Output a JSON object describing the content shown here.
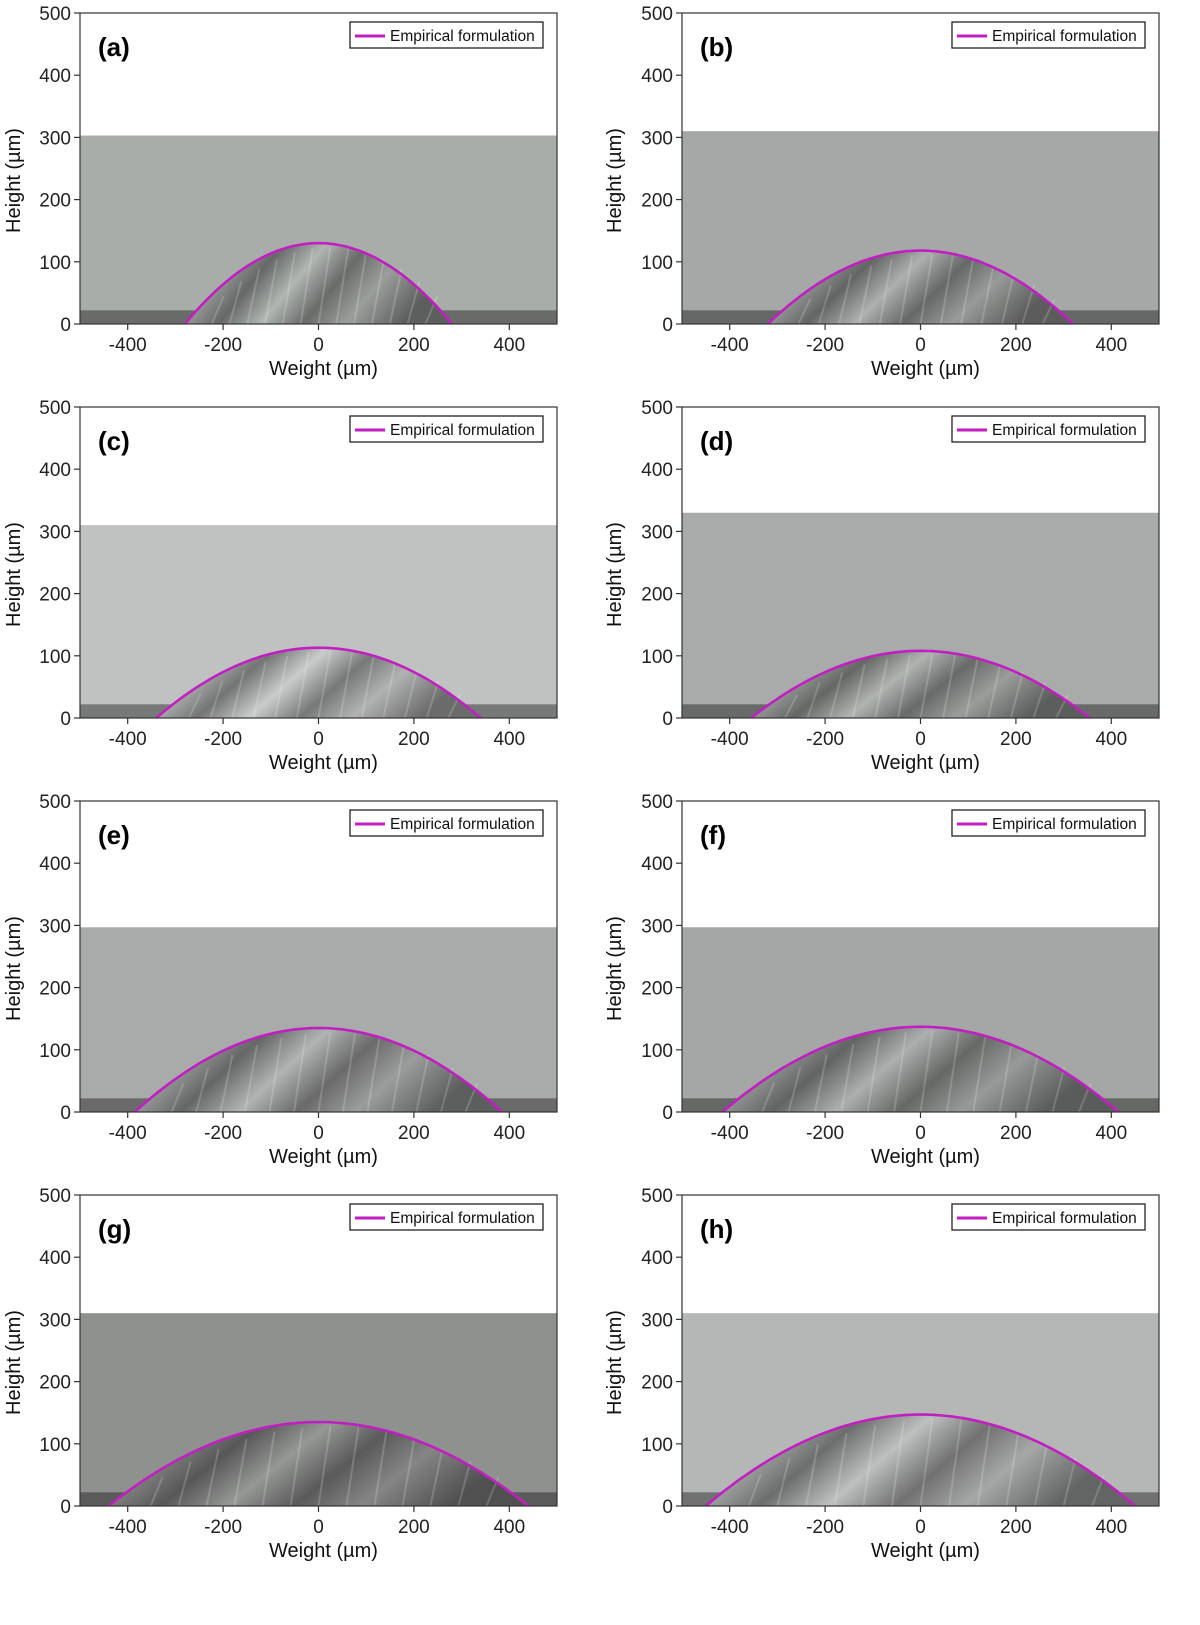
{
  "chart_data": [
    {
      "type": "line",
      "panel_label": "(a)",
      "xlabel": "Weight (µm)",
      "ylabel": "Height (µm)",
      "xlim": [
        -500,
        500
      ],
      "ylim": [
        0,
        500
      ],
      "xticks": [
        -400,
        -200,
        0,
        200,
        400
      ],
      "yticks": [
        0,
        100,
        200,
        300,
        400,
        500
      ],
      "legend": "Empirical formulation",
      "legend_position": "top-right",
      "image_top": 303,
      "image_tone": "#a9adaa",
      "series": [
        {
          "name": "Empirical formulation",
          "color": "#c21fc2",
          "peak_height": 130,
          "half_width": 280
        }
      ]
    },
    {
      "type": "line",
      "panel_label": "(b)",
      "xlabel": "Weight (µm)",
      "ylabel": "Height (µm)",
      "xlim": [
        -500,
        500
      ],
      "ylim": [
        0,
        500
      ],
      "xticks": [
        -400,
        -200,
        0,
        200,
        400
      ],
      "yticks": [
        0,
        100,
        200,
        300,
        400,
        500
      ],
      "legend": "Empirical formulation",
      "legend_position": "top-right",
      "image_top": 310,
      "image_tone": "#a5a8a6",
      "series": [
        {
          "name": "Empirical formulation",
          "color": "#c21fc2",
          "peak_height": 118,
          "half_width": 320
        }
      ]
    },
    {
      "type": "line",
      "panel_label": "(c)",
      "xlabel": "Weight (µm)",
      "ylabel": "Height (µm)",
      "xlim": [
        -500,
        500
      ],
      "ylim": [
        0,
        500
      ],
      "xticks": [
        -400,
        -200,
        0,
        200,
        400
      ],
      "yticks": [
        0,
        100,
        200,
        300,
        400,
        500
      ],
      "legend": "Empirical formulation",
      "legend_position": "top-right",
      "image_top": 310,
      "image_tone": "#c0c2c1",
      "series": [
        {
          "name": "Empirical formulation",
          "color": "#c21fc2",
          "peak_height": 113,
          "half_width": 340
        }
      ]
    },
    {
      "type": "line",
      "panel_label": "(d)",
      "xlabel": "Weight (µm)",
      "ylabel": "Height (µm)",
      "xlim": [
        -500,
        500
      ],
      "ylim": [
        0,
        500
      ],
      "xticks": [
        -400,
        -200,
        0,
        200,
        400
      ],
      "yticks": [
        0,
        100,
        200,
        300,
        400,
        500
      ],
      "legend": "Empirical formulation",
      "legend_position": "top-right",
      "image_top": 330,
      "image_tone": "#a8aba9",
      "series": [
        {
          "name": "Empirical formulation",
          "color": "#c21fc2",
          "peak_height": 108,
          "half_width": 355
        }
      ]
    },
    {
      "type": "line",
      "panel_label": "(e)",
      "xlabel": "Weight (µm)",
      "ylabel": "Height (µm)",
      "xlim": [
        -500,
        500
      ],
      "ylim": [
        0,
        500
      ],
      "xticks": [
        -400,
        -200,
        0,
        200,
        400
      ],
      "yticks": [
        0,
        100,
        200,
        300,
        400,
        500
      ],
      "legend": "Empirical formulation",
      "legend_position": "top-right",
      "image_top": 297,
      "image_tone": "#a9abaa",
      "series": [
        {
          "name": "Empirical formulation",
          "color": "#c21fc2",
          "peak_height": 135,
          "half_width": 385
        }
      ]
    },
    {
      "type": "line",
      "panel_label": "(f)",
      "xlabel": "Weight (µm)",
      "ylabel": "Height (µm)",
      "xlim": [
        -500,
        500
      ],
      "ylim": [
        0,
        500
      ],
      "xticks": [
        -400,
        -200,
        0,
        200,
        400
      ],
      "yticks": [
        0,
        100,
        200,
        300,
        400,
        500
      ],
      "legend": "Empirical formulation",
      "legend_position": "top-right",
      "image_top": 297,
      "image_tone": "#a4a7a5",
      "series": [
        {
          "name": "Empirical formulation",
          "color": "#c21fc2",
          "peak_height": 137,
          "half_width": 415
        }
      ]
    },
    {
      "type": "line",
      "panel_label": "(g)",
      "xlabel": "Weight (µm)",
      "ylabel": "Height (µm)",
      "xlim": [
        -500,
        500
      ],
      "ylim": [
        0,
        500
      ],
      "xticks": [
        -400,
        -200,
        0,
        200,
        400
      ],
      "yticks": [
        0,
        100,
        200,
        300,
        400,
        500
      ],
      "legend": "Empirical formulation",
      "legend_position": "top-right",
      "image_top": 310,
      "image_tone": "#8f918f",
      "series": [
        {
          "name": "Empirical formulation",
          "color": "#c21fc2",
          "peak_height": 135,
          "half_width": 440
        }
      ]
    },
    {
      "type": "line",
      "panel_label": "(h)",
      "xlabel": "Weight (µm)",
      "ylabel": "Height (µm)",
      "xlim": [
        -500,
        500
      ],
      "ylim": [
        0,
        500
      ],
      "xticks": [
        -400,
        -200,
        0,
        200,
        400
      ],
      "yticks": [
        0,
        100,
        200,
        300,
        400,
        500
      ],
      "legend": "Empirical formulation",
      "legend_position": "top-right",
      "image_top": 310,
      "image_tone": "#b4b7b5",
      "series": [
        {
          "name": "Empirical formulation",
          "color": "#c21fc2",
          "peak_height": 147,
          "half_width": 450
        }
      ]
    }
  ]
}
